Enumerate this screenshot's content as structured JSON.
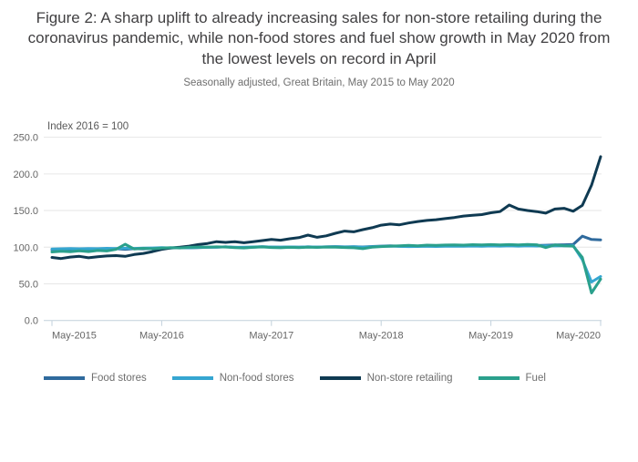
{
  "page": {
    "title": "Figure 2: A sharp uplift to already increasing sales for non-store retailing during the coronavirus pandemic, while non-food stores and fuel show growth in May 2020 from the lowest levels on record in April",
    "subtitle": "Seasonally adjusted, Great Britain, May 2015 to May 2020"
  },
  "chart_data": {
    "type": "line",
    "title": "Figure 2: A sharp uplift to already increasing sales for non-store retailing during the coronavirus pandemic, while non-food stores and fuel show growth in May 2020 from the lowest levels on record in April",
    "subtitle": "Seasonally adjusted, Great Britain, May 2015 to May 2020",
    "index_label": "Index 2016 = 100",
    "frequency": "monthly",
    "x_start": "May-2015",
    "x_end": "May-2020",
    "x_tick_labels": [
      "May-2015",
      "May-2016",
      "May-2017",
      "May-2018",
      "May-2019",
      "May-2020"
    ],
    "x_tick_positions": [
      0,
      12,
      24,
      36,
      48,
      60
    ],
    "y_ticks": [
      0,
      50,
      100,
      150,
      200,
      250
    ],
    "y_tick_labels": [
      "0.0",
      "50.0",
      "100.0",
      "150.0",
      "200.0",
      "250.0"
    ],
    "ylim": [
      0,
      250
    ],
    "grid": "horizontal",
    "legend_position": "bottom",
    "colors": {
      "gridline": "#e6e6e6",
      "axis_line": "#c2d1dc",
      "tick_text": "#666666"
    },
    "series": [
      {
        "name": "Food stores",
        "color": "#2f6a9d",
        "values": [
          96.5,
          96.8,
          97.2,
          96.9,
          97.4,
          97.2,
          97.6,
          97.9,
          97.1,
          98.0,
          97.7,
          98.4,
          98.7,
          98.9,
          99.3,
          99.1,
          99.5,
          99.8,
          100.1,
          100.4,
          99.8,
          99.5,
          99.9,
          100.6,
          100.2,
          99.9,
          100.3,
          100.0,
          100.4,
          100.2,
          100.5,
          100.8,
          100.4,
          100.7,
          100.3,
          100.9,
          101.4,
          101.8,
          101.5,
          101.2,
          101.4,
          101.6,
          101.5,
          101.8,
          102.0,
          101.7,
          102.2,
          102.5,
          102.2,
          102.0,
          102.4,
          102.2,
          102.5,
          102.3,
          102.7,
          103.0,
          103.3,
          103.8,
          115.0,
          110.5,
          110.0
        ]
      },
      {
        "name": "Non-food stores",
        "color": "#35a6d1",
        "values": [
          97.5,
          97.8,
          98.1,
          97.8,
          98.2,
          98.0,
          98.4,
          98.2,
          98.6,
          98.3,
          98.7,
          99.0,
          99.3,
          98.9,
          99.5,
          99.2,
          99.7,
          99.9,
          100.1,
          100.4,
          99.8,
          100.1,
          100.3,
          100.6,
          100.2,
          99.9,
          100.3,
          100.1,
          100.4,
          100.2,
          100.5,
          100.7,
          100.3,
          100.6,
          99.9,
          100.7,
          101.1,
          101.4,
          101.1,
          100.8,
          101.0,
          101.2,
          100.9,
          101.3,
          101.5,
          101.2,
          101.6,
          101.3,
          101.7,
          101.4,
          101.8,
          101.5,
          101.9,
          101.6,
          102.0,
          101.7,
          102.0,
          102.2,
          83.0,
          52.5,
          60.0
        ]
      },
      {
        "name": "Non-store retailing",
        "color": "#0f3a52",
        "values": [
          86.0,
          84.5,
          86.5,
          87.5,
          85.5,
          87.0,
          88.0,
          88.5,
          87.5,
          90.0,
          91.5,
          94.0,
          97.0,
          99.0,
          100.0,
          101.5,
          103.5,
          105.0,
          107.5,
          106.5,
          107.5,
          106.0,
          107.5,
          109.0,
          110.5,
          109.5,
          111.5,
          113.0,
          116.5,
          113.5,
          115.5,
          119.0,
          122.0,
          121.0,
          124.0,
          126.5,
          130.0,
          131.5,
          130.5,
          133.0,
          135.0,
          136.5,
          137.5,
          139.0,
          140.5,
          142.5,
          143.5,
          144.5,
          147.0,
          148.5,
          157.5,
          152.0,
          150.0,
          148.5,
          146.5,
          152.0,
          153.0,
          149.0,
          157.0,
          184.5,
          223.5
        ]
      },
      {
        "name": "Fuel",
        "color": "#2aa08c",
        "values": [
          93.5,
          94.5,
          93.8,
          95.0,
          94.0,
          95.5,
          94.8,
          97.0,
          104.0,
          97.5,
          98.5,
          97.8,
          98.8,
          99.5,
          99.0,
          99.8,
          100.2,
          100.0,
          100.5,
          100.2,
          99.5,
          99.0,
          99.8,
          100.3,
          99.6,
          99.2,
          99.8,
          99.5,
          100.0,
          99.7,
          100.2,
          100.0,
          99.6,
          99.2,
          98.0,
          100.0,
          100.8,
          101.5,
          102.0,
          102.5,
          102.0,
          102.8,
          102.4,
          102.9,
          103.2,
          102.8,
          103.4,
          103.0,
          103.5,
          103.1,
          103.6,
          103.2,
          103.7,
          103.3,
          99.5,
          103.0,
          102.0,
          101.5,
          86.0,
          37.5,
          56.5
        ]
      }
    ]
  }
}
